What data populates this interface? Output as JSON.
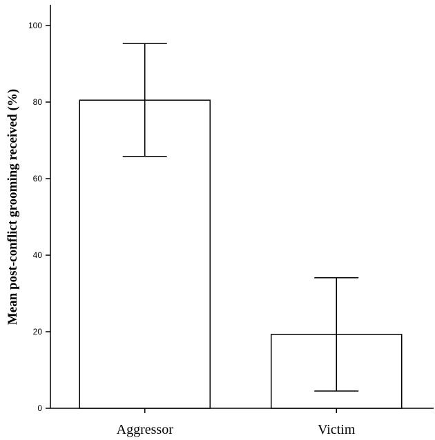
{
  "chart_data": {
    "type": "bar",
    "categories": [
      "Aggressor",
      "Victim"
    ],
    "values": [
      80.5,
      19.3
    ],
    "error_bars": [
      {
        "low": 65.8,
        "high": 95.3
      },
      {
        "low": 4.5,
        "high": 34.1
      }
    ],
    "title": "",
    "xlabel": "",
    "ylabel": "Mean post-conflict grooming received (%)",
    "ylim": [
      0,
      105
    ],
    "yticks": [
      0,
      20,
      40,
      60,
      80,
      100
    ],
    "grid": false,
    "legend": "none",
    "colors": {
      "bar_fill": "#ffffff",
      "stroke": "#000000"
    }
  }
}
